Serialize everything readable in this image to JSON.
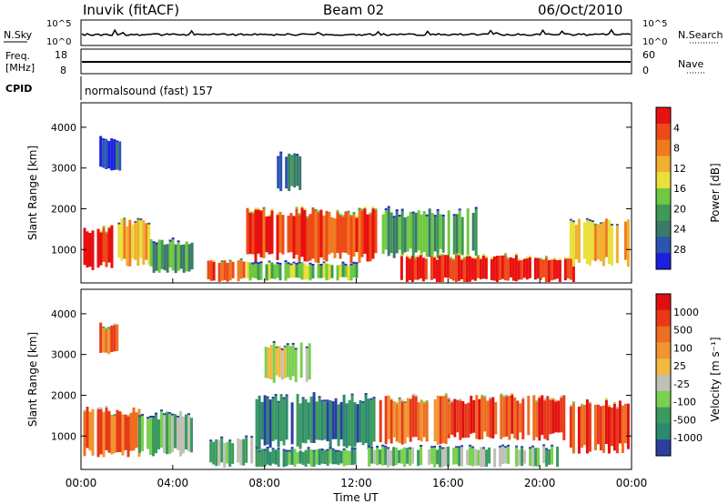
{
  "header": {
    "station": "Inuvik (fitACF)",
    "beam": "Beam 02",
    "date": "06/Oct/2010"
  },
  "noise_panel": {
    "left_label": "N.Sky",
    "right_label": "N.Search",
    "left_ticks": [
      "10^5",
      "10^0"
    ],
    "right_ticks": [
      "10^5",
      "10^0"
    ]
  },
  "freq_panel": {
    "left_label_line1": "Freq.",
    "left_label_line2": "[MHz]",
    "right_label": "Nave",
    "left_ticks": [
      "18",
      "8"
    ],
    "right_ticks": [
      "60",
      "0"
    ]
  },
  "cpid_panel": {
    "label": "CPID",
    "text": "normalsound (fast) 157"
  },
  "time_axis": {
    "label": "Time UT",
    "ticks": [
      "00:00",
      "04:00",
      "08:00",
      "12:00",
      "16:00",
      "20:00",
      "00:00"
    ]
  },
  "chart_data": [
    {
      "type": "heatmap",
      "title": "",
      "xlabel": "Time UT",
      "ylabel": "Slant Range [km]",
      "xlim": [
        0,
        24
      ],
      "ylim": [
        180,
        4600
      ],
      "yticks": [
        "1000",
        "2000",
        "3000",
        "4000"
      ],
      "colorbar": {
        "label": "Power [dB]",
        "ticks": [
          "4",
          "8",
          "12",
          "16",
          "20",
          "24",
          "28"
        ],
        "colors": [
          "#1b1fe0",
          "#2b55b0",
          "#3a7a6a",
          "#3f9a55",
          "#6fc840",
          "#e9e03a",
          "#f0b030",
          "#f07a20",
          "#ee4a18",
          "#e81010"
        ]
      },
      "echo_regions": [
        {
          "t": [
            0.1,
            1.6
          ],
          "range": [
            600,
            1500
          ],
          "level": 9
        },
        {
          "t": [
            1.6,
            3.0
          ],
          "range": [
            700,
            1650
          ],
          "level": 6
        },
        {
          "t": [
            3.0,
            4.8
          ],
          "range": [
            500,
            1200
          ],
          "level": 3
        },
        {
          "t": [
            5.5,
            7.1
          ],
          "range": [
            250,
            700
          ],
          "level": 8
        },
        {
          "t": [
            7.2,
            12.8
          ],
          "range": [
            800,
            1900
          ],
          "level": 8
        },
        {
          "t": [
            7.2,
            12.0
          ],
          "range": [
            280,
            650
          ],
          "level": 4
        },
        {
          "t": [
            13.0,
            17.2
          ],
          "range": [
            900,
            1900
          ],
          "level": 3
        },
        {
          "t": [
            13.8,
            21.5
          ],
          "range": [
            250,
            800
          ],
          "level": 9
        },
        {
          "t": [
            21.3,
            23.8
          ],
          "range": [
            700,
            1700
          ],
          "level": 6
        },
        {
          "t": [
            8.3,
            9.5
          ],
          "range": [
            2500,
            3300
          ],
          "level": 2
        },
        {
          "t": [
            0.8,
            1.7
          ],
          "range": [
            3000,
            3700
          ],
          "level": 1
        }
      ]
    },
    {
      "type": "heatmap",
      "title": "",
      "xlabel": "Time UT",
      "ylabel": "Slant Range [km]",
      "xlim": [
        0,
        24
      ],
      "ylim": [
        180,
        4600
      ],
      "yticks": [
        "1000",
        "2000",
        "3000",
        "4000"
      ],
      "colorbar": {
        "label": "Velocity [m s⁻¹]",
        "ticks": [
          "1000",
          "500",
          "100",
          "25",
          "-25",
          "-100",
          "-500",
          "-1000"
        ],
        "colors": [
          "#2a3fa0",
          "#2c8a6f",
          "#3c9a60",
          "#7ad050",
          "#c0c0b8",
          "#f2b840",
          "#f09530",
          "#ec6e20",
          "#e83818",
          "#e01010"
        ]
      },
      "echo_regions": [
        {
          "t": [
            0.1,
            2.5
          ],
          "range": [
            600,
            1600
          ],
          "level": 7
        },
        {
          "t": [
            2.5,
            4.8
          ],
          "range": [
            600,
            1500
          ],
          "level": 3
        },
        {
          "t": [
            5.6,
            7.5
          ],
          "range": [
            280,
            900
          ],
          "level": 3
        },
        {
          "t": [
            7.6,
            12.8
          ],
          "range": [
            800,
            1900
          ],
          "level": 1
        },
        {
          "t": [
            7.6,
            12.0
          ],
          "range": [
            280,
            650
          ],
          "level": 2
        },
        {
          "t": [
            12.5,
            20.8
          ],
          "range": [
            280,
            700
          ],
          "level": 3
        },
        {
          "t": [
            13.0,
            16.0
          ],
          "range": [
            900,
            1900
          ],
          "level": 7
        },
        {
          "t": [
            16.0,
            21.0
          ],
          "range": [
            1000,
            1900
          ],
          "level": 8
        },
        {
          "t": [
            21.3,
            23.9
          ],
          "range": [
            700,
            1800
          ],
          "level": 8
        },
        {
          "t": [
            8.0,
            10.0
          ],
          "range": [
            2400,
            3200
          ],
          "level": 4
        },
        {
          "t": [
            0.8,
            1.6
          ],
          "range": [
            3000,
            3700
          ],
          "level": 7
        }
      ]
    }
  ]
}
